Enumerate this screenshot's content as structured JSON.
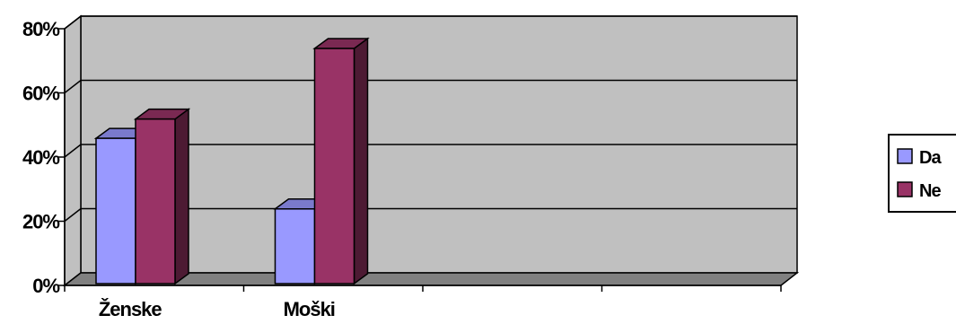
{
  "chart_data": {
    "type": "bar",
    "style": "3d-clustered-column",
    "categories": [
      "Ženske",
      "Moški",
      "",
      ""
    ],
    "series": [
      {
        "name": "Da",
        "values": [
          45,
          23,
          null,
          null
        ],
        "color": "#9999ff"
      },
      {
        "name": "Ne",
        "values": [
          51,
          73,
          null,
          null
        ],
        "color": "#993366"
      }
    ],
    "y_ticks": [
      "0%",
      "20%",
      "40%",
      "60%",
      "80%"
    ],
    "y_tick_values": [
      0,
      20,
      40,
      60,
      80
    ],
    "ylim": [
      0,
      80
    ],
    "y_unit": "%",
    "grid": true,
    "legend_position": "right",
    "colors": {
      "plot_wall": "#c0c0c0",
      "floor": "#808080",
      "gridline": "#000000",
      "axis": "#000000"
    }
  }
}
